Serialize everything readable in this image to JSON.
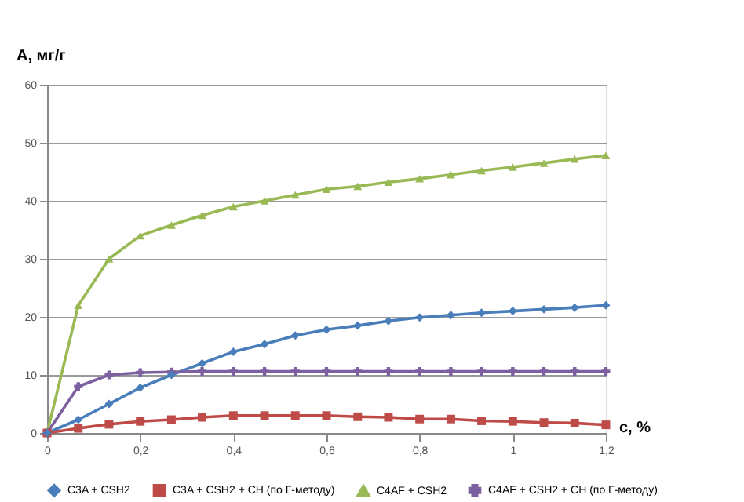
{
  "chart_data": {
    "type": "line",
    "ylabel": "А, мг/г",
    "xlabel": "c, %",
    "x": [
      0,
      0.067,
      0.133,
      0.2,
      0.267,
      0.333,
      0.4,
      0.467,
      0.533,
      0.6,
      0.667,
      0.733,
      0.8,
      0.867,
      0.933,
      1,
      1.067,
      1.133,
      1.2
    ],
    "series": [
      {
        "name": "C3A + CSH2",
        "color": "#4a7ebb",
        "marker": "diamond",
        "values": [
          0,
          2.3,
          5,
          7.8,
          10,
          12,
          14,
          15.3,
          16.8,
          17.8,
          18.5,
          19.3,
          19.9,
          20.3,
          20.7,
          21,
          21.3,
          21.6,
          22
        ]
      },
      {
        "name": "C3A + CSH2 + CH (по Г-методу)",
        "color": "#be4b48",
        "marker": "square",
        "values": [
          0,
          0.8,
          1.5,
          2,
          2.3,
          2.7,
          3,
          3,
          3,
          3,
          2.8,
          2.7,
          2.4,
          2.4,
          2.1,
          2,
          1.8,
          1.7,
          1.4
        ]
      },
      {
        "name": "C4AF + CSH2",
        "color": "#98b954",
        "marker": "triangle",
        "values": [
          0,
          22,
          30,
          34,
          35.8,
          37.5,
          39,
          40,
          41,
          42,
          42.5,
          43.2,
          43.8,
          44.5,
          45.2,
          45.8,
          46.5,
          47.2,
          47.8
        ]
      },
      {
        "name": "C4AF + CSH2 + CH (по Г-методу)",
        "color": "#7d60a0",
        "marker": "cross",
        "values": [
          0,
          8,
          10,
          10.4,
          10.5,
          10.6,
          10.6,
          10.6,
          10.6,
          10.6,
          10.6,
          10.6,
          10.6,
          10.6,
          10.6,
          10.6,
          10.6,
          10.6,
          10.6
        ]
      }
    ],
    "xlim": [
      0,
      1.2
    ],
    "xticks": [
      0,
      {
        "value": 0.2,
        "label": "0,2"
      },
      {
        "value": 0.4,
        "label": "0,4"
      },
      {
        "value": 0.6,
        "label": "0,6"
      },
      {
        "value": 0.8,
        "label": "0,8"
      },
      1,
      {
        "value": 1.2,
        "label": "1,2"
      }
    ],
    "ylim": [
      0,
      60
    ],
    "yticks": [
      0,
      10,
      20,
      30,
      40,
      50,
      60
    ],
    "grid": "y",
    "legend": "bottom",
    "line_style": "solid"
  }
}
